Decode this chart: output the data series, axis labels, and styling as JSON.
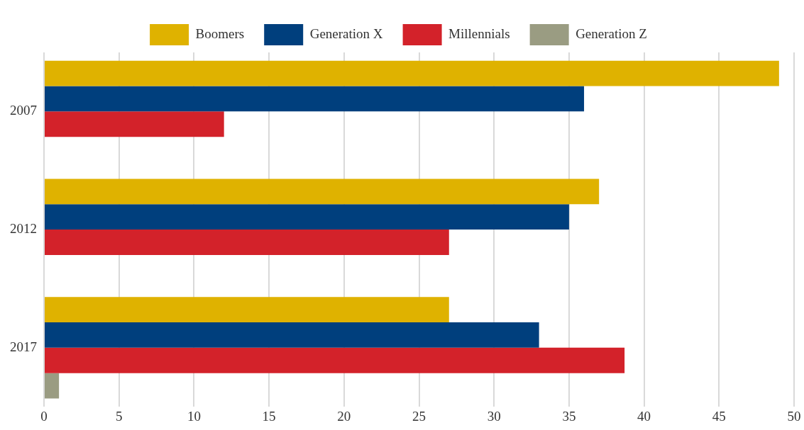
{
  "chart_data": {
    "type": "bar",
    "orientation": "horizontal",
    "categories": [
      "2007",
      "2012",
      "2017"
    ],
    "series": [
      {
        "name": "Boomers",
        "color": "#dfb200",
        "values": [
          49,
          37,
          27
        ]
      },
      {
        "name": "Generation X",
        "color": "#003f7d",
        "values": [
          36,
          35,
          33
        ]
      },
      {
        "name": "Millennials",
        "color": "#d3222a",
        "values": [
          12,
          27,
          38.7
        ]
      },
      {
        "name": "Generation Z",
        "color": "#9a9c82",
        "values": [
          null,
          null,
          1
        ]
      }
    ],
    "xlim": [
      0,
      50
    ],
    "xticks": [
      0,
      5,
      10,
      15,
      20,
      25,
      30,
      35,
      40,
      45,
      50
    ],
    "grid": "x",
    "legend": "top"
  }
}
